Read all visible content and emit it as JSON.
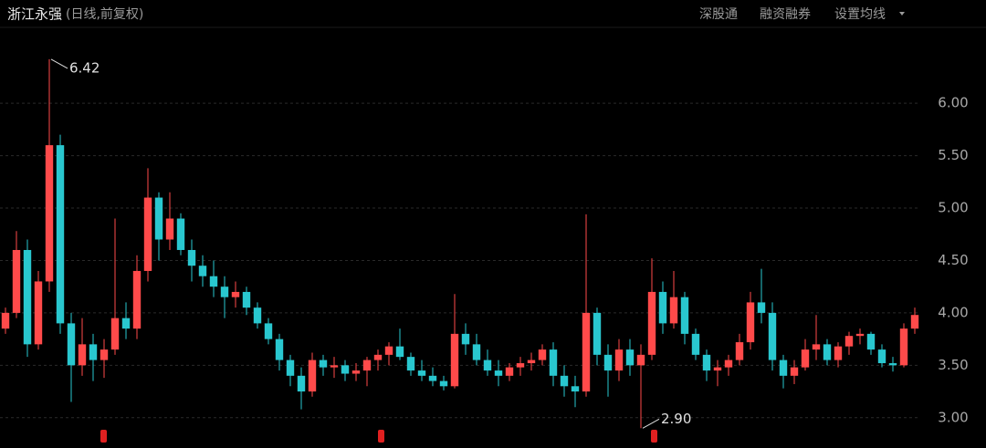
{
  "header": {
    "title": "浙江永强",
    "subtitle": "(日线,前复权)",
    "buttons": [
      "深股通",
      "融资融券",
      "设置均线"
    ]
  },
  "chart_data": {
    "type": "candlestick",
    "up_color": "#ff4a4a",
    "down_color": "#29c7cf",
    "ylim": [
      2.85,
      6.55
    ],
    "yticks": [
      {
        "value": 3,
        "label": "3.00"
      },
      {
        "value": 3.5,
        "label": "3.50"
      },
      {
        "value": 4,
        "label": "4.00"
      },
      {
        "value": 4.5,
        "label": "4.50"
      },
      {
        "value": 5,
        "label": "5.00"
      },
      {
        "value": 5.5,
        "label": "5.50"
      },
      {
        "value": 6,
        "label": "6.00"
      }
    ],
    "grid": true,
    "annotations": [
      {
        "label": "6.42",
        "value": 6.42
      },
      {
        "label": "2.90",
        "value": 2.9
      }
    ],
    "open": [
      3.85,
      4.0,
      4.6,
      3.7,
      4.3,
      5.6,
      3.9,
      3.5,
      3.7,
      3.55,
      3.65,
      3.95,
      3.85,
      4.4,
      5.1,
      4.7,
      4.9,
      4.6,
      4.45,
      4.35,
      4.25,
      4.15,
      4.2,
      4.05,
      3.9,
      3.75,
      3.55,
      3.4,
      3.25,
      3.55,
      3.48,
      3.5,
      3.42,
      3.45,
      3.55,
      3.6,
      3.68,
      3.58,
      3.45,
      3.4,
      3.35,
      3.3,
      3.8,
      3.7,
      3.55,
      3.45,
      3.4,
      3.48,
      3.52,
      3.55,
      3.65,
      3.4,
      3.3,
      3.25,
      4.0,
      3.6,
      3.45,
      3.65,
      3.5,
      3.6,
      4.2,
      3.9,
      4.15,
      3.8,
      3.6,
      3.45,
      3.48,
      3.55,
      3.72,
      4.1,
      4.0,
      3.55,
      3.4,
      3.48,
      3.65,
      3.7,
      3.55,
      3.68,
      3.78,
      3.8,
      3.65,
      3.52,
      3.5,
      3.85
    ],
    "high": [
      4.05,
      4.78,
      4.7,
      4.4,
      6.42,
      5.7,
      4.0,
      3.95,
      3.8,
      3.75,
      4.9,
      4.1,
      4.55,
      5.38,
      5.15,
      5.15,
      4.95,
      4.7,
      4.55,
      4.5,
      4.35,
      4.3,
      4.25,
      4.1,
      3.95,
      3.8,
      3.6,
      3.48,
      3.62,
      3.6,
      3.58,
      3.55,
      3.52,
      3.58,
      3.65,
      3.72,
      3.85,
      3.62,
      3.55,
      3.48,
      3.4,
      4.18,
      3.9,
      3.8,
      3.65,
      3.55,
      3.52,
      3.58,
      3.62,
      3.7,
      3.72,
      3.5,
      3.4,
      4.94,
      4.05,
      3.7,
      3.75,
      3.75,
      3.7,
      4.52,
      4.3,
      4.4,
      4.2,
      3.85,
      3.65,
      3.55,
      3.6,
      3.8,
      4.2,
      4.42,
      4.1,
      3.6,
      3.55,
      3.75,
      3.98,
      3.75,
      3.72,
      3.82,
      3.85,
      3.82,
      3.7,
      3.58,
      3.9,
      4.05
    ],
    "low": [
      3.8,
      3.95,
      3.58,
      3.65,
      4.2,
      3.8,
      3.15,
      3.4,
      3.35,
      3.38,
      3.6,
      3.75,
      3.75,
      4.3,
      4.5,
      4.6,
      4.55,
      4.3,
      4.25,
      4.15,
      3.95,
      4.05,
      3.98,
      3.85,
      3.7,
      3.45,
      3.3,
      3.08,
      3.2,
      3.4,
      3.38,
      3.35,
      3.35,
      3.3,
      3.45,
      3.5,
      3.55,
      3.4,
      3.35,
      3.3,
      3.26,
      3.28,
      3.6,
      3.5,
      3.4,
      3.3,
      3.35,
      3.4,
      3.45,
      3.5,
      3.3,
      3.2,
      3.1,
      3.2,
      3.5,
      3.2,
      3.35,
      3.4,
      2.9,
      3.55,
      3.8,
      3.85,
      3.7,
      3.55,
      3.35,
      3.3,
      3.4,
      3.5,
      3.65,
      3.9,
      3.45,
      3.28,
      3.32,
      3.45,
      3.55,
      3.5,
      3.48,
      3.6,
      3.7,
      3.6,
      3.48,
      3.44,
      3.48,
      3.8
    ],
    "close": [
      4.0,
      4.6,
      3.7,
      4.3,
      5.6,
      3.9,
      3.5,
      3.7,
      3.55,
      3.65,
      3.95,
      3.85,
      4.4,
      5.1,
      4.7,
      4.9,
      4.6,
      4.45,
      4.35,
      4.25,
      4.15,
      4.2,
      4.05,
      3.9,
      3.75,
      3.55,
      3.4,
      3.25,
      3.55,
      3.48,
      3.5,
      3.42,
      3.45,
      3.55,
      3.6,
      3.68,
      3.58,
      3.45,
      3.4,
      3.35,
      3.3,
      3.8,
      3.7,
      3.55,
      3.45,
      3.4,
      3.48,
      3.52,
      3.55,
      3.65,
      3.4,
      3.3,
      3.25,
      4.0,
      3.6,
      3.45,
      3.65,
      3.5,
      3.6,
      4.2,
      3.9,
      4.15,
      3.8,
      3.6,
      3.45,
      3.48,
      3.55,
      3.72,
      4.1,
      4.0,
      3.55,
      3.4,
      3.48,
      3.65,
      3.7,
      3.55,
      3.68,
      3.78,
      3.8,
      3.65,
      3.52,
      3.5,
      3.85,
      3.98
    ]
  }
}
